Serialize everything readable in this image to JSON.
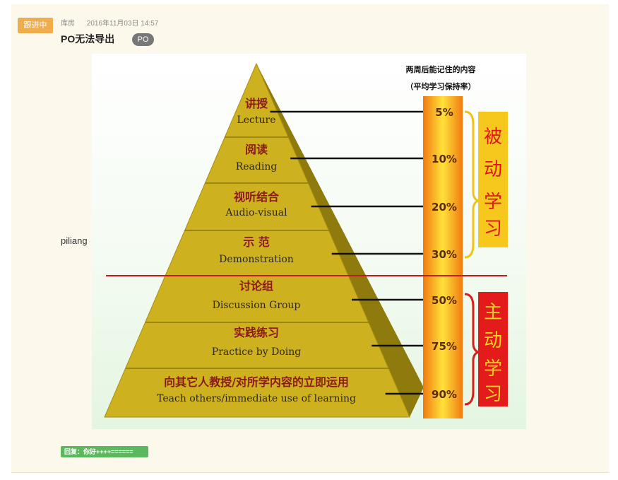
{
  "post": {
    "status": "跟进中",
    "author": "库房",
    "timestamp": "2016年11月03日 14:57",
    "title": "PO无法导出",
    "tag": "PO",
    "side_label": "piliang",
    "reply_label": "回复：你好++++======"
  },
  "pyramid": {
    "header_line1": "两周后能记住的内容",
    "header_line2": "（平均学习保持率）",
    "levels": [
      {
        "zh": "讲授",
        "en": "Lecture",
        "pct": "5%"
      },
      {
        "zh": "阅读",
        "en": "Reading",
        "pct": "10%"
      },
      {
        "zh": "视听结合",
        "en": "Audio-visual",
        "pct": "20%"
      },
      {
        "zh": "示 范",
        "en": "Demonstration",
        "pct": "30%"
      },
      {
        "zh": "讨论组",
        "en": "Discussion Group",
        "pct": "50%"
      },
      {
        "zh": "实践练习",
        "en": "Practice by Doing",
        "pct": "75%"
      },
      {
        "zh": "向其它人教授/对所学内容的立即运用",
        "en": "Teach others/immediate use of learning",
        "pct": "90%"
      }
    ],
    "passive_label": [
      "被",
      "动",
      "学",
      "习"
    ],
    "active_label": [
      "主",
      "动",
      "学",
      "习"
    ],
    "colors": {
      "pyramid_face": "#cdb11e",
      "pyramid_side": "#8f7a0e",
      "zh_text": "#8b1a1a",
      "passive_box": "#f6c81e",
      "active_box": "#e31b1b",
      "divider": "#c8161d"
    }
  }
}
